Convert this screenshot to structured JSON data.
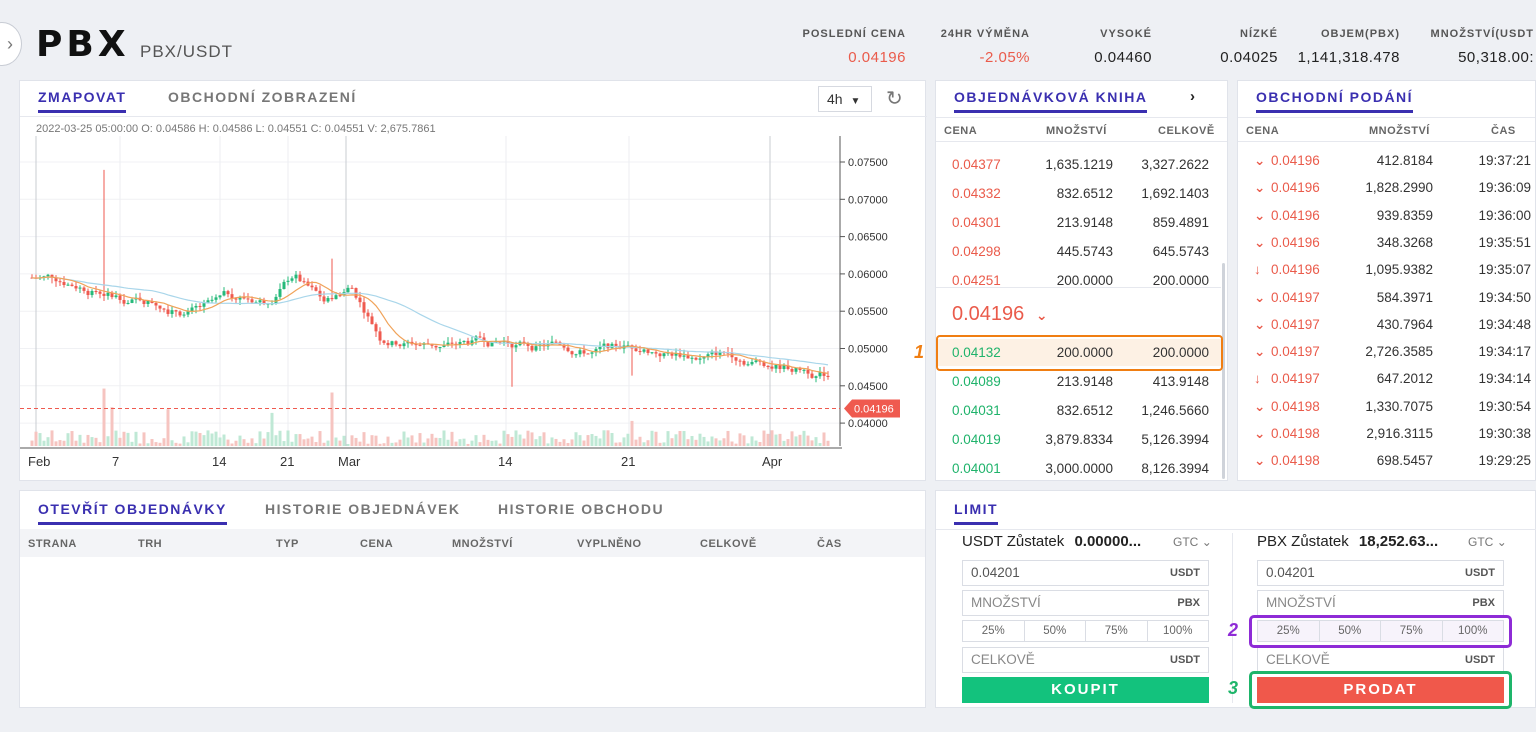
{
  "header": {
    "symbol": "PBX",
    "pair": "PBX/USDT",
    "stats": [
      {
        "label": "POSLEDNÍ CENA",
        "value": "0.04196"
      },
      {
        "label": "24HR VÝMĚNA",
        "value": "-2.05%"
      },
      {
        "label": "VYSOKÉ",
        "value": "0.04460"
      },
      {
        "label": "NÍZKÉ",
        "value": "0.04025"
      },
      {
        "label": "OBJEM(PBX)",
        "value": "1,141,318.478"
      },
      {
        "label": "MNOŽSTVÍ(USDT",
        "value": "50,318.00:"
      }
    ]
  },
  "chart": {
    "tabs": [
      "ZMAPOVAT",
      "OBCHODNÍ ZOBRAZENÍ"
    ],
    "interval": "4h",
    "ohlc_info": "2022-03-25 05:00:00  O: 0.04586  H: 0.04586  L: 0.04551  C: 0.04551  V: 2,675.7861",
    "price_ticks": [
      "0.07500",
      "0.07000",
      "0.06500",
      "0.06000",
      "0.05500",
      "0.05000",
      "0.04500",
      "0.04000"
    ],
    "last_price_tag": "0.04196",
    "x_ticks": [
      "Feb",
      "7",
      "14",
      "21",
      "Mar",
      "14",
      "21",
      "Apr"
    ],
    "colors": {
      "up": "#26b97a",
      "down": "#ef5a4f",
      "ma_fast": "#f0a35a",
      "ma_slow": "#a9d6ea"
    }
  },
  "orderbook": {
    "title": "OBJEDNÁVKOVÁ KNIHA",
    "columns": [
      "CENA",
      "MNOŽSTVÍ",
      "CELKOVĚ"
    ],
    "asks": [
      {
        "price": "0.04377",
        "qty": "1,635.1219",
        "total": "3,327.2622"
      },
      {
        "price": "0.04332",
        "qty": "832.6512",
        "total": "1,692.1403"
      },
      {
        "price": "0.04301",
        "qty": "213.9148",
        "total": "859.4891"
      },
      {
        "price": "0.04298",
        "qty": "445.5743",
        "total": "645.5743"
      },
      {
        "price": "0.04251",
        "qty": "200.0000",
        "total": "200.0000"
      }
    ],
    "mid_price": "0.04196",
    "bids": [
      {
        "price": "0.04132",
        "qty": "200.0000",
        "total": "200.0000"
      },
      {
        "price": "0.04089",
        "qty": "213.9148",
        "total": "413.9148"
      },
      {
        "price": "0.04031",
        "qty": "832.6512",
        "total": "1,246.5660"
      },
      {
        "price": "0.04019",
        "qty": "3,879.8334",
        "total": "5,126.3994"
      },
      {
        "price": "0.04001",
        "qty": "3,000.0000",
        "total": "8,126.3994"
      }
    ]
  },
  "trades": {
    "title": "OBCHODNÍ PODÁNÍ",
    "columns": [
      "CENA",
      "MNOŽSTVÍ",
      "ČAS"
    ],
    "rows": [
      {
        "price": "0.04196",
        "qty": "412.8184",
        "time": "19:37:21",
        "icon": "chevron-down"
      },
      {
        "price": "0.04196",
        "qty": "1,828.2990",
        "time": "19:36:09",
        "icon": "chevron-down"
      },
      {
        "price": "0.04196",
        "qty": "939.8359",
        "time": "19:36:00",
        "icon": "chevron-down"
      },
      {
        "price": "0.04196",
        "qty": "348.3268",
        "time": "19:35:51",
        "icon": "chevron-down"
      },
      {
        "price": "0.04196",
        "qty": "1,095.9382",
        "time": "19:35:07",
        "icon": "arrow-down"
      },
      {
        "price": "0.04197",
        "qty": "584.3971",
        "time": "19:34:50",
        "icon": "chevron-down"
      },
      {
        "price": "0.04197",
        "qty": "430.7964",
        "time": "19:34:48",
        "icon": "chevron-down"
      },
      {
        "price": "0.04197",
        "qty": "2,726.3585",
        "time": "19:34:17",
        "icon": "chevron-down"
      },
      {
        "price": "0.04197",
        "qty": "647.2012",
        "time": "19:34:14",
        "icon": "arrow-down"
      },
      {
        "price": "0.04198",
        "qty": "1,330.7075",
        "time": "19:30:54",
        "icon": "chevron-down"
      },
      {
        "price": "0.04198",
        "qty": "2,916.3115",
        "time": "19:30:38",
        "icon": "chevron-down"
      },
      {
        "price": "0.04198",
        "qty": "698.5457",
        "time": "19:29:25",
        "icon": "chevron-down"
      }
    ]
  },
  "orders": {
    "tabs": [
      "OTEVŘÍT OBJEDNÁVKY",
      "HISTORIE OBJEDNÁVEK",
      "HISTORIE OBCHODU"
    ],
    "columns": [
      "STRANA",
      "TRH",
      "TYP",
      "CENA",
      "MNOŽSTVÍ",
      "VYPLNĚNO",
      "CELKOVĚ",
      "ČAS"
    ]
  },
  "limit": {
    "tab": "LIMIT",
    "buy": {
      "balance_label": "USDT Zůstatek",
      "balance_value": "0.00000...",
      "gtc": "GTC",
      "price": "0.04201",
      "price_unit": "USDT",
      "qty_placeholder": "MNOŽSTVÍ",
      "qty_unit": "PBX",
      "percents": [
        "25%",
        "50%",
        "75%",
        "100%"
      ],
      "total_placeholder": "CELKOVĚ",
      "total_unit": "USDT",
      "button": "KOUPIT"
    },
    "sell": {
      "balance_label": "PBX Zůstatek",
      "balance_value": "18,252.63...",
      "gtc": "GTC",
      "price": "0.04201",
      "price_unit": "USDT",
      "qty_placeholder": "MNOŽSTVÍ",
      "qty_unit": "PBX",
      "percents": [
        "25%",
        "50%",
        "75%",
        "100%"
      ],
      "total_placeholder": "CELKOVĚ",
      "total_unit": "USDT",
      "button": "PRODAT"
    }
  },
  "annotations": [
    {
      "label": "1",
      "color": "#f07e12"
    },
    {
      "label": "2",
      "color": "#8e2bd6"
    },
    {
      "label": "3",
      "color": "#1eb56a"
    }
  ]
}
